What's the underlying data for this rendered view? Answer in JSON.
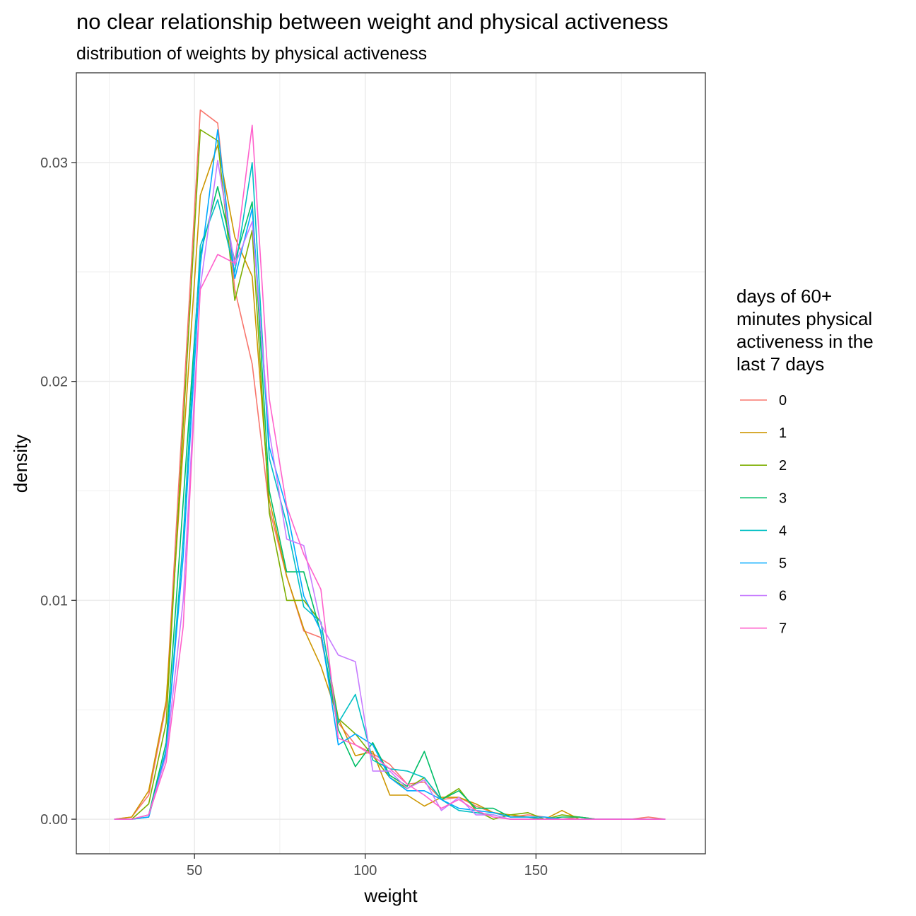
{
  "chart_data": {
    "type": "line",
    "title": "no clear relationship between weight and physical activeness",
    "subtitle": "distribution of weights by physical activeness",
    "xlabel": "weight",
    "ylabel": "density",
    "xlim": [
      15.4,
      199.6
    ],
    "ylim": [
      -0.00158,
      0.0341
    ],
    "xticks": [
      50,
      100,
      150
    ],
    "yticks": [
      0.0,
      0.01,
      0.02,
      0.03
    ],
    "ytick_labels": [
      "0.00",
      "0.01",
      "0.02",
      "0.03"
    ],
    "grid": true,
    "legend": {
      "title_lines": [
        "days of 60+",
        "minutes physical",
        "activeness in the",
        "last 7 days"
      ],
      "placement": "right"
    },
    "x": [
      26.5,
      31.6,
      36.6,
      41.7,
      46.7,
      51.7,
      56.8,
      61.8,
      66.9,
      71.9,
      77.0,
      82.0,
      87.0,
      92.1,
      97.1,
      102.2,
      107.2,
      112.3,
      117.3,
      122.3,
      127.4,
      132.4,
      137.5,
      142.5,
      147.6,
      152.6,
      157.6,
      162.7,
      167.7,
      172.8,
      177.8,
      182.9,
      187.9
    ],
    "series": [
      {
        "name": "0",
        "color": "#F8766D",
        "values": [
          0.0,
          0.0001,
          0.0011,
          0.0052,
          0.0189,
          0.0324,
          0.0318,
          0.0242,
          0.0208,
          0.0142,
          0.0111,
          0.0086,
          0.0083,
          0.0044,
          0.0034,
          0.003,
          0.0025,
          0.0016,
          0.0017,
          0.0009,
          0.001,
          0.0006,
          0.0003,
          0.0001,
          0.0002,
          0.0001,
          0.0,
          0.0001,
          0.0,
          0.0,
          0.0,
          0.0001,
          0.0
        ]
      },
      {
        "name": "1",
        "color": "#CD9600",
        "values": [
          0.0,
          0.0001,
          0.0013,
          0.0054,
          0.017,
          0.0285,
          0.0308,
          0.0266,
          0.0248,
          0.0146,
          0.0111,
          0.0087,
          0.007,
          0.0046,
          0.0029,
          0.0031,
          0.0011,
          0.0011,
          0.0006,
          0.001,
          0.001,
          0.0007,
          0.0003,
          0.0002,
          0.0001,
          0.0,
          0.0004,
          0.0,
          0.0,
          0.0,
          0.0,
          0.0,
          0.0
        ]
      },
      {
        "name": "2",
        "color": "#7CAE00",
        "values": [
          0.0,
          0.0,
          0.0007,
          0.0044,
          0.018,
          0.0315,
          0.031,
          0.0237,
          0.0269,
          0.014,
          0.01,
          0.01,
          0.009,
          0.0046,
          0.0039,
          0.0029,
          0.0019,
          0.0014,
          0.0019,
          0.0009,
          0.0014,
          0.0004,
          0.0,
          0.0002,
          0.0003,
          0.0,
          0.0002,
          0.0001,
          0.0,
          0.0,
          0.0,
          0.0,
          0.0
        ]
      },
      {
        "name": "3",
        "color": "#00BE67",
        "values": [
          0.0,
          0.0,
          0.0002,
          0.0035,
          0.0145,
          0.0258,
          0.0289,
          0.0255,
          0.0282,
          0.015,
          0.0113,
          0.0113,
          0.0085,
          0.0041,
          0.0024,
          0.0035,
          0.002,
          0.0015,
          0.0031,
          0.0009,
          0.0013,
          0.0005,
          0.0005,
          0.0001,
          0.0001,
          0.0,
          0.0001,
          0.0001,
          0.0,
          0.0,
          0.0,
          0.0,
          0.0
        ]
      },
      {
        "name": "4",
        "color": "#00BFC4",
        "values": [
          0.0,
          0.0,
          0.0001,
          0.003,
          0.0128,
          0.0262,
          0.0283,
          0.025,
          0.03,
          0.0165,
          0.0135,
          0.0097,
          0.009,
          0.0044,
          0.0057,
          0.0027,
          0.0023,
          0.0022,
          0.0019,
          0.0009,
          0.0004,
          0.0003,
          0.0002,
          0.0,
          0.0,
          0.0,
          0.0,
          0.0,
          0.0,
          0.0,
          0.0,
          0.0,
          0.0
        ]
      },
      {
        "name": "5",
        "color": "#00A9FF",
        "values": [
          0.0,
          0.0,
          0.0001,
          0.0032,
          0.012,
          0.0253,
          0.0315,
          0.0247,
          0.0279,
          0.017,
          0.0142,
          0.0102,
          0.0086,
          0.0034,
          0.0039,
          0.0034,
          0.0019,
          0.0013,
          0.0013,
          0.0009,
          0.0005,
          0.0004,
          0.0003,
          0.0001,
          0.0001,
          0.0001,
          0.0,
          0.0,
          0.0,
          0.0,
          0.0,
          0.0,
          0.0
        ]
      },
      {
        "name": "6",
        "color": "#C77CFF",
        "values": [
          0.0,
          0.0,
          0.0002,
          0.0029,
          0.01,
          0.0243,
          0.0301,
          0.0253,
          0.0273,
          0.0177,
          0.0128,
          0.0125,
          0.0089,
          0.0075,
          0.0072,
          0.0022,
          0.0022,
          0.0014,
          0.0018,
          0.0004,
          0.001,
          0.0002,
          0.0002,
          0.0,
          0.0,
          0.0,
          0.0,
          0.0,
          0.0,
          0.0,
          0.0,
          0.0,
          0.0
        ]
      },
      {
        "name": "7",
        "color": "#FF61CC",
        "values": [
          0.0,
          0.0,
          0.0002,
          0.0026,
          0.0088,
          0.0242,
          0.0258,
          0.0254,
          0.0317,
          0.0192,
          0.0143,
          0.0121,
          0.0105,
          0.0037,
          0.0034,
          0.0029,
          0.0023,
          0.0016,
          0.0011,
          0.0005,
          0.0009,
          0.0004,
          0.0001,
          0.0,
          0.0,
          0.0,
          0.0,
          0.0,
          0.0,
          0.0,
          0.0,
          0.0,
          0.0
        ]
      }
    ]
  }
}
